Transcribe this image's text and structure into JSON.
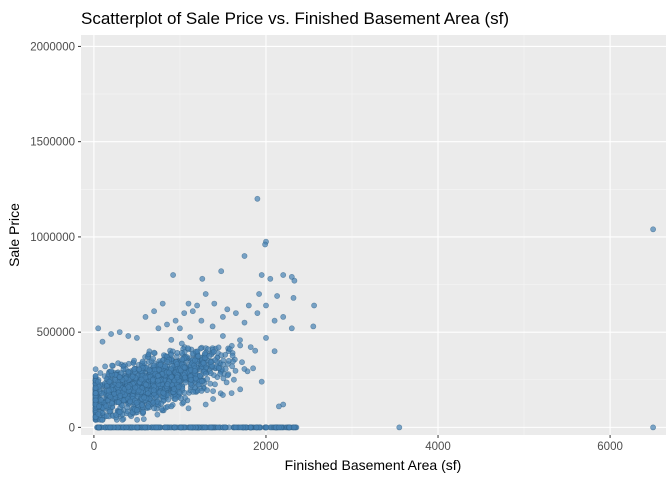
{
  "chart_data": {
    "type": "scatter",
    "title": "Scatterplot of Sale Price vs. Finished Basement Area (sf)",
    "xlabel": "Finished Basement Area (sf)",
    "ylabel": "Sale Price",
    "xlim": [
      -150,
      6650
    ],
    "ylim": [
      -40000,
      2060000
    ],
    "xticks": [
      0,
      2000,
      4000,
      6000
    ],
    "yticks": [
      0,
      500000,
      1000000,
      1500000,
      2000000
    ],
    "xtick_labels": [
      "0",
      "2000",
      "4000",
      "6000"
    ],
    "ytick_labels": [
      "0",
      "500000",
      "1000000",
      "1500000",
      "2000000"
    ],
    "grid": true,
    "point_color": "#4682b4",
    "panel_color": "#ebebeb",
    "series": [
      {
        "points": [
          [
            1900,
            1200000
          ],
          [
            2000,
            975000
          ],
          [
            1990,
            960000
          ],
          [
            6500,
            1040000
          ],
          [
            1750,
            900000
          ],
          [
            2200,
            800000
          ],
          [
            2300,
            790000
          ],
          [
            1950,
            800000
          ],
          [
            2050,
            780000
          ],
          [
            920,
            800000
          ],
          [
            1480,
            820000
          ],
          [
            1260,
            780000
          ],
          [
            2330,
            770000
          ],
          [
            2130,
            690000
          ],
          [
            1920,
            700000
          ],
          [
            2560,
            640000
          ],
          [
            2320,
            680000
          ],
          [
            2000,
            640000
          ],
          [
            2550,
            530000
          ],
          [
            2300,
            520000
          ],
          [
            2200,
            580000
          ],
          [
            2100,
            560000
          ],
          [
            1900,
            600000
          ],
          [
            1800,
            640000
          ],
          [
            1650,
            600000
          ],
          [
            1550,
            620000
          ],
          [
            1400,
            650000
          ],
          [
            1300,
            700000
          ],
          [
            1200,
            640000
          ],
          [
            1100,
            650000
          ],
          [
            800,
            650000
          ],
          [
            700,
            610000
          ],
          [
            600,
            580000
          ],
          [
            200,
            490000
          ],
          [
            300,
            500000
          ],
          [
            100,
            450000
          ],
          [
            50,
            520000
          ],
          [
            400,
            480000
          ],
          [
            500,
            470000
          ],
          [
            900,
            460000
          ],
          [
            1000,
            520000
          ],
          [
            1500,
            480000
          ],
          [
            1700,
            430000
          ],
          [
            2000,
            470000
          ],
          [
            2100,
            400000
          ],
          [
            1850,
            310000
          ],
          [
            1950,
            240000
          ],
          [
            1700,
            200000
          ],
          [
            1600,
            180000
          ],
          [
            1500,
            170000
          ],
          [
            2200,
            120000
          ],
          [
            2150,
            110000
          ],
          [
            1300,
            120000
          ],
          [
            1100,
            100000
          ],
          [
            900,
            110000
          ],
          [
            700,
            100000
          ],
          [
            500,
            90000
          ],
          [
            300,
            80000
          ],
          [
            150,
            60000
          ],
          [
            50,
            70000
          ],
          [
            1450,
            420000
          ],
          [
            1500,
            580000
          ],
          [
            1750,
            550000
          ],
          [
            1250,
            560000
          ],
          [
            1380,
            530000
          ],
          [
            950,
            560000
          ],
          [
            1050,
            600000
          ],
          [
            1150,
            610000
          ],
          [
            850,
            540000
          ],
          [
            750,
            520000
          ]
        ]
      }
    ]
  }
}
